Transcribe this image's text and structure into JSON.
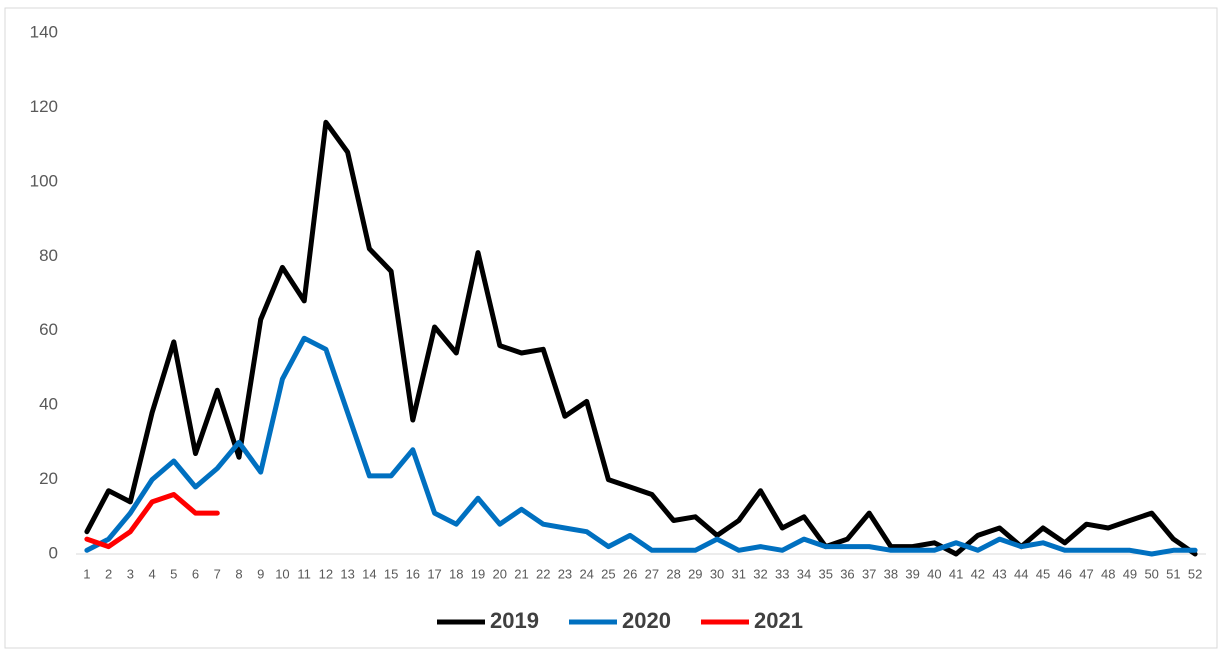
{
  "chart_data": {
    "type": "line",
    "categories": [
      1,
      2,
      3,
      4,
      5,
      6,
      7,
      8,
      9,
      10,
      11,
      12,
      13,
      14,
      15,
      16,
      17,
      18,
      19,
      20,
      21,
      22,
      23,
      24,
      25,
      26,
      27,
      28,
      29,
      30,
      31,
      32,
      33,
      34,
      35,
      36,
      37,
      38,
      39,
      40,
      41,
      42,
      43,
      44,
      45,
      46,
      47,
      48,
      49,
      50,
      51,
      52
    ],
    "series": [
      {
        "name": "2019",
        "color": "#000000",
        "values": [
          6,
          17,
          14,
          38,
          57,
          27,
          44,
          26,
          63,
          77,
          68,
          116,
          108,
          82,
          76,
          36,
          61,
          54,
          81,
          56,
          54,
          55,
          37,
          41,
          20,
          18,
          16,
          9,
          10,
          5,
          9,
          17,
          7,
          10,
          2,
          4,
          11,
          2,
          2,
          3,
          0,
          5,
          7,
          2,
          7,
          3,
          8,
          7,
          9,
          11,
          4,
          0
        ]
      },
      {
        "name": "2020",
        "color": "#0070c0",
        "values": [
          1,
          4,
          11,
          20,
          25,
          18,
          23,
          30,
          22,
          47,
          58,
          55,
          38,
          21,
          21,
          28,
          11,
          8,
          15,
          8,
          12,
          8,
          7,
          6,
          2,
          5,
          1,
          1,
          1,
          4,
          1,
          2,
          1,
          4,
          2,
          2,
          2,
          1,
          1,
          1,
          3,
          1,
          4,
          2,
          3,
          1,
          1,
          1,
          1,
          0,
          1,
          1
        ]
      },
      {
        "name": "2021",
        "color": "#ff0000",
        "values": [
          4,
          2,
          6,
          14,
          16,
          11,
          11,
          null,
          null,
          null,
          null,
          null,
          null,
          null,
          null,
          null,
          null,
          null,
          null,
          null,
          null,
          null,
          null,
          null,
          null,
          null,
          null,
          null,
          null,
          null,
          null,
          null,
          null,
          null,
          null,
          null,
          null,
          null,
          null,
          null,
          null,
          null,
          null,
          null,
          null,
          null,
          null,
          null,
          null,
          null,
          null,
          null
        ]
      }
    ],
    "ylim": [
      0,
      140
    ],
    "yticks": [
      0,
      20,
      40,
      60,
      80,
      100,
      120,
      140
    ],
    "grid": false,
    "legend": "bottom"
  }
}
